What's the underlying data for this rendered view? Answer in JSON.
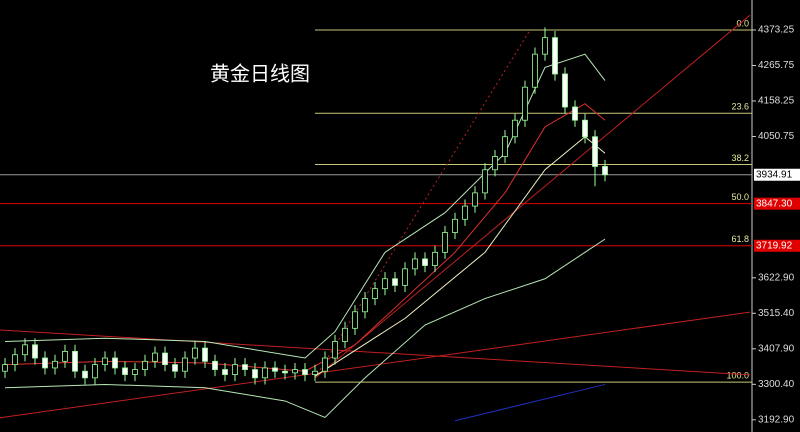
{
  "chart_data": {
    "type": "candlestick",
    "title": "黄金日线图",
    "ylim": [
      3156,
      4464
    ],
    "xlim": [
      -0.5,
      74.7
    ],
    "yticks": [
      4373.25,
      4265.75,
      4158.25,
      4050.75,
      {
        "value": 3622.9,
        "label": "3622.90"
      },
      {
        "value": 3515.4,
        "label": "3515.40"
      },
      {
        "value": 3407.9,
        "label": "3407.90"
      },
      {
        "value": 3300.4,
        "label": "3300.40"
      },
      {
        "value": 3192.9,
        "label": "3192.90"
      }
    ],
    "up_color": "#9cff9c",
    "down_color": "#ffffff",
    "open": [
      3340,
      3360,
      3390,
      3420,
      3380,
      3350,
      3370,
      3400,
      3340,
      3320,
      3360,
      3380,
      3350,
      3330,
      3345,
      3370,
      3395,
      3360,
      3340,
      3380,
      3410,
      3370,
      3345,
      3330,
      3360,
      3345,
      3320,
      3350,
      3340,
      3335,
      3345,
      3330,
      3340,
      3380,
      3430,
      3470,
      3520,
      3560,
      3590,
      3620,
      3600,
      3650,
      3680,
      3660,
      3700,
      3760,
      3800,
      3840,
      3880,
      3950,
      3990,
      4050,
      4100,
      4200,
      4300,
      4350,
      4240,
      4140,
      4100,
      4050,
      3960
    ],
    "high": [
      3380,
      3410,
      3440,
      3440,
      3400,
      3390,
      3420,
      3420,
      3360,
      3380,
      3400,
      3400,
      3370,
      3365,
      3390,
      3415,
      3415,
      3380,
      3400,
      3430,
      3430,
      3390,
      3365,
      3380,
      3380,
      3365,
      3370,
      3370,
      3360,
      3365,
      3365,
      3360,
      3400,
      3450,
      3490,
      3540,
      3580,
      3610,
      3640,
      3640,
      3670,
      3700,
      3700,
      3720,
      3780,
      3820,
      3860,
      3900,
      3970,
      4010,
      4070,
      4120,
      4220,
      4320,
      4381,
      4370,
      4260,
      4160,
      4120,
      4070,
      3980
    ],
    "low": [
      3320,
      3340,
      3370,
      3360,
      3330,
      3330,
      3350,
      3320,
      3300,
      3300,
      3340,
      3330,
      3310,
      3310,
      3325,
      3350,
      3340,
      3320,
      3320,
      3360,
      3350,
      3325,
      3310,
      3310,
      3325,
      3300,
      3300,
      3320,
      3315,
      3315,
      3310,
      3310,
      3320,
      3360,
      3410,
      3450,
      3500,
      3540,
      3570,
      3580,
      3580,
      3630,
      3640,
      3640,
      3680,
      3740,
      3780,
      3820,
      3860,
      3930,
      3970,
      4030,
      4080,
      4180,
      4280,
      4220,
      4120,
      4080,
      4030,
      3900,
      3915
    ],
    "close": [
      3360,
      3390,
      3420,
      3380,
      3350,
      3370,
      3400,
      3340,
      3320,
      3360,
      3380,
      3350,
      3330,
      3345,
      3370,
      3395,
      3360,
      3340,
      3380,
      3410,
      3370,
      3345,
      3330,
      3360,
      3345,
      3320,
      3350,
      3340,
      3335,
      3345,
      3330,
      3340,
      3380,
      3430,
      3470,
      3520,
      3560,
      3590,
      3620,
      3600,
      3650,
      3680,
      3660,
      3700,
      3760,
      3800,
      3840,
      3880,
      3950,
      3990,
      4050,
      4100,
      4200,
      4300,
      4350,
      4240,
      4140,
      4100,
      4050,
      3960,
      3935
    ],
    "overlays": [
      {
        "color": "#e03030",
        "x": [
          0,
          10,
          20,
          30,
          35,
          40,
          45,
          50,
          54,
          58,
          60
        ],
        "values": [
          3360,
          3370,
          3365,
          3340,
          3420,
          3560,
          3700,
          3880,
          4080,
          4150,
          4100
        ]
      },
      {
        "color": "#b8e8b8",
        "x": [
          0,
          10,
          20,
          30,
          33,
          38,
          44,
          50,
          54,
          58,
          60
        ],
        "values": [
          3430,
          3440,
          3430,
          3380,
          3460,
          3700,
          3820,
          4000,
          4260,
          4300,
          4220
        ]
      },
      {
        "color": "#b8e8b8",
        "x": [
          0,
          10,
          20,
          28,
          32,
          36,
          42,
          48,
          54,
          58,
          60
        ],
        "values": [
          3290,
          3300,
          3290,
          3250,
          3200,
          3320,
          3480,
          3560,
          3620,
          3700,
          3740
        ]
      },
      {
        "color": "#f0f0c0",
        "x": [
          31,
          40,
          48,
          54,
          58,
          60
        ],
        "values": [
          3325,
          3500,
          3700,
          3950,
          4050,
          4000
        ]
      },
      {
        "color": "#2030c0",
        "x": [
          45,
          60
        ],
        "values": [
          3190,
          3300
        ]
      }
    ],
    "trend_lines": [
      {
        "color": "#c02020",
        "dashed": false,
        "x": [
          -0.5,
          74.5
        ],
        "values": [
          3465,
          3329
        ]
      },
      {
        "color": "#c02020",
        "dashed": false,
        "x": [
          -0.5,
          74.5
        ],
        "values": [
          3199,
          3519
        ]
      },
      {
        "color": "#c02020",
        "dashed": false,
        "x": [
          31,
          74.5
        ],
        "values": [
          3319,
          4418
        ]
      },
      {
        "color": "#c02020",
        "dashed": true,
        "x": [
          31,
          52.5
        ],
        "values": [
          3319,
          4373
        ]
      }
    ],
    "levels": [
      {
        "ratio": "0.0",
        "value": 4373.25,
        "color": "#c8c878",
        "from": 31
      },
      {
        "ratio": "23.6",
        "value": 4121,
        "color": "#c8c878",
        "from": 31
      },
      {
        "ratio": "38.2",
        "value": 3966,
        "color": "#c8c878",
        "from": 31
      },
      {
        "ratio": "50.0",
        "value": 3847.3,
        "label": "3847.30",
        "color": "#e00000",
        "from": -0.5
      },
      {
        "ratio": "61.8",
        "value": 3719.92,
        "label": "3719.92",
        "color": "#e00000",
        "from": -0.5
      },
      {
        "ratio": "100.0",
        "value": 3307,
        "color": "#c8c878",
        "from": 31
      }
    ],
    "price": 3934.91
  }
}
